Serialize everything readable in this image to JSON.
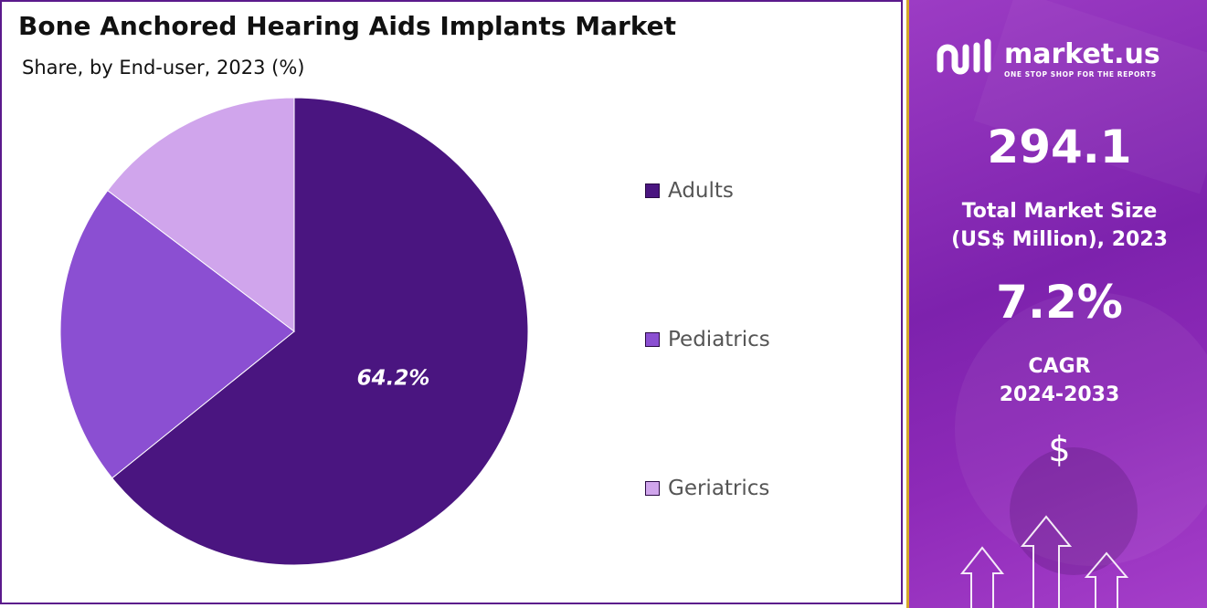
{
  "title": "Bone Anchored Hearing Aids Implants Market",
  "subtitle": "Share, by End-user, 2023 (%)",
  "chart_data": {
    "type": "pie",
    "title": "Bone Anchored Hearing Aids Implants Market",
    "subtitle": "Share, by End-user, 2023 (%)",
    "categories": [
      "Adults",
      "Pediatrics",
      "Geriatrics"
    ],
    "values": [
      64.2,
      21.1,
      14.7
    ],
    "data_labels": [
      "64.2%",
      "",
      ""
    ],
    "colors": [
      "#4a1580",
      "#8b4fd2",
      "#d0a5ec"
    ],
    "legend_position": "right",
    "start_angle_deg": 0,
    "direction": "clockwise"
  },
  "brand": {
    "name": "market.us",
    "tagline": "ONE STOP SHOP FOR THE REPORTS",
    "logo_icon": "market-us-logo-icon"
  },
  "stats": {
    "market_size_value": "294.1",
    "market_size_label_line1": "Total Market Size",
    "market_size_label_line2": "(US$ Million), 2023",
    "cagr_value": "7.2%",
    "cagr_label_line1": "CAGR",
    "cagr_label_line2": "2024-2033",
    "currency_icon": "$"
  },
  "colors": {
    "border": "#5b1a8c",
    "right_panel": "#8e2ab8",
    "accent_gold": "#d6a52a"
  }
}
